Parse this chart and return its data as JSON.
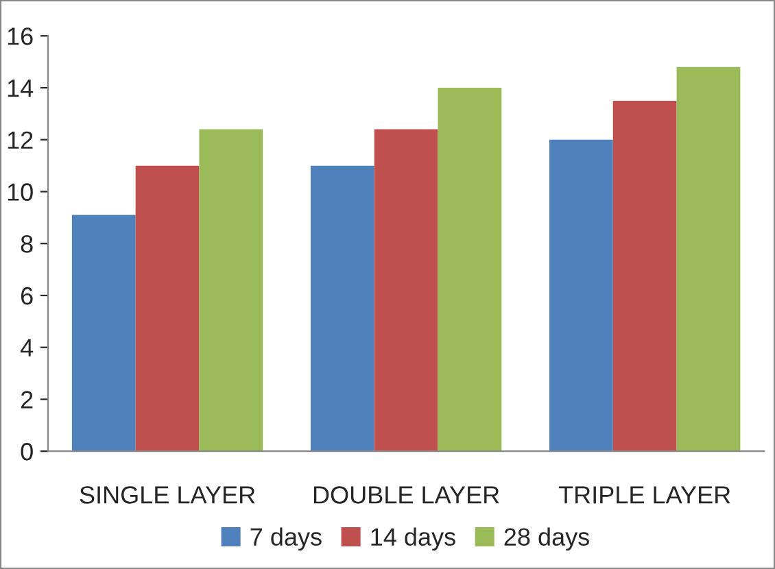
{
  "chart_data": {
    "type": "bar",
    "categories": [
      "SINGLE LAYER",
      "DOUBLE LAYER",
      "TRIPLE LAYER"
    ],
    "series": [
      {
        "name": "7 days",
        "color": "#4f81bd",
        "values": [
          9.1,
          11.0,
          12.0
        ]
      },
      {
        "name": "14 days",
        "color": "#c0504d",
        "values": [
          11.0,
          12.4,
          13.5
        ]
      },
      {
        "name": "28 days",
        "color": "#9bbb59",
        "values": [
          12.4,
          14.0,
          14.8
        ]
      }
    ],
    "ylim": [
      0,
      16
    ],
    "yticks": [
      0,
      2,
      4,
      6,
      8,
      10,
      12,
      14,
      16
    ],
    "grid": false,
    "legend": "bottom"
  }
}
